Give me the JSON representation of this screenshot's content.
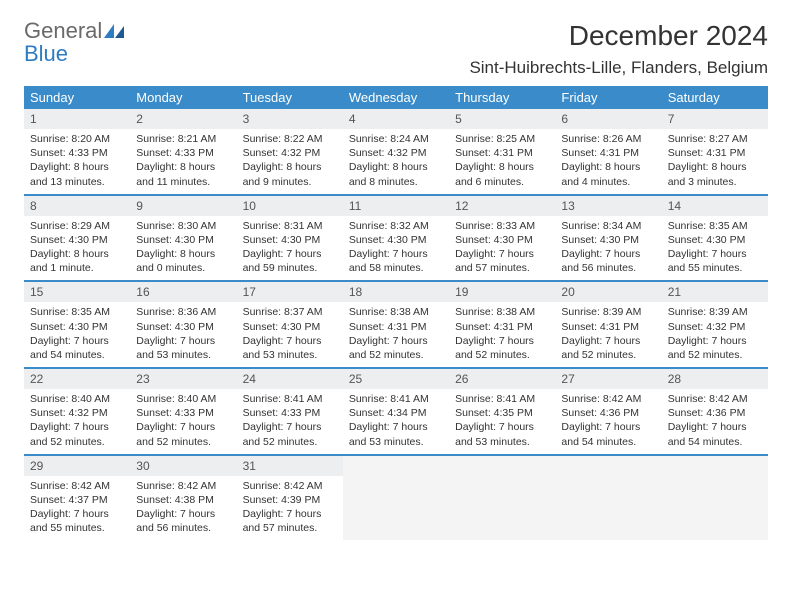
{
  "logo": {
    "general": "General",
    "blue": "Blue"
  },
  "title": "December 2024",
  "location": "Sint-Huibrechts-Lille, Flanders, Belgium",
  "colors": {
    "header_bg": "#3a8bc9",
    "header_text": "#ffffff",
    "daynum_bg": "#eceeef",
    "daynum_text": "#555555",
    "body_text": "#333333",
    "rule": "#3a8bc9",
    "logo_gray": "#6a6a6a",
    "logo_blue": "#2e7cc2",
    "empty_bg": "#f4f4f4"
  },
  "weekdays": [
    "Sunday",
    "Monday",
    "Tuesday",
    "Wednesday",
    "Thursday",
    "Friday",
    "Saturday"
  ],
  "weeks": [
    [
      {
        "n": "1",
        "sr": "Sunrise: 8:20 AM",
        "ss": "Sunset: 4:33 PM",
        "dl1": "Daylight: 8 hours",
        "dl2": "and 13 minutes."
      },
      {
        "n": "2",
        "sr": "Sunrise: 8:21 AM",
        "ss": "Sunset: 4:33 PM",
        "dl1": "Daylight: 8 hours",
        "dl2": "and 11 minutes."
      },
      {
        "n": "3",
        "sr": "Sunrise: 8:22 AM",
        "ss": "Sunset: 4:32 PM",
        "dl1": "Daylight: 8 hours",
        "dl2": "and 9 minutes."
      },
      {
        "n": "4",
        "sr": "Sunrise: 8:24 AM",
        "ss": "Sunset: 4:32 PM",
        "dl1": "Daylight: 8 hours",
        "dl2": "and 8 minutes."
      },
      {
        "n": "5",
        "sr": "Sunrise: 8:25 AM",
        "ss": "Sunset: 4:31 PM",
        "dl1": "Daylight: 8 hours",
        "dl2": "and 6 minutes."
      },
      {
        "n": "6",
        "sr": "Sunrise: 8:26 AM",
        "ss": "Sunset: 4:31 PM",
        "dl1": "Daylight: 8 hours",
        "dl2": "and 4 minutes."
      },
      {
        "n": "7",
        "sr": "Sunrise: 8:27 AM",
        "ss": "Sunset: 4:31 PM",
        "dl1": "Daylight: 8 hours",
        "dl2": "and 3 minutes."
      }
    ],
    [
      {
        "n": "8",
        "sr": "Sunrise: 8:29 AM",
        "ss": "Sunset: 4:30 PM",
        "dl1": "Daylight: 8 hours",
        "dl2": "and 1 minute."
      },
      {
        "n": "9",
        "sr": "Sunrise: 8:30 AM",
        "ss": "Sunset: 4:30 PM",
        "dl1": "Daylight: 8 hours",
        "dl2": "and 0 minutes."
      },
      {
        "n": "10",
        "sr": "Sunrise: 8:31 AM",
        "ss": "Sunset: 4:30 PM",
        "dl1": "Daylight: 7 hours",
        "dl2": "and 59 minutes."
      },
      {
        "n": "11",
        "sr": "Sunrise: 8:32 AM",
        "ss": "Sunset: 4:30 PM",
        "dl1": "Daylight: 7 hours",
        "dl2": "and 58 minutes."
      },
      {
        "n": "12",
        "sr": "Sunrise: 8:33 AM",
        "ss": "Sunset: 4:30 PM",
        "dl1": "Daylight: 7 hours",
        "dl2": "and 57 minutes."
      },
      {
        "n": "13",
        "sr": "Sunrise: 8:34 AM",
        "ss": "Sunset: 4:30 PM",
        "dl1": "Daylight: 7 hours",
        "dl2": "and 56 minutes."
      },
      {
        "n": "14",
        "sr": "Sunrise: 8:35 AM",
        "ss": "Sunset: 4:30 PM",
        "dl1": "Daylight: 7 hours",
        "dl2": "and 55 minutes."
      }
    ],
    [
      {
        "n": "15",
        "sr": "Sunrise: 8:35 AM",
        "ss": "Sunset: 4:30 PM",
        "dl1": "Daylight: 7 hours",
        "dl2": "and 54 minutes."
      },
      {
        "n": "16",
        "sr": "Sunrise: 8:36 AM",
        "ss": "Sunset: 4:30 PM",
        "dl1": "Daylight: 7 hours",
        "dl2": "and 53 minutes."
      },
      {
        "n": "17",
        "sr": "Sunrise: 8:37 AM",
        "ss": "Sunset: 4:30 PM",
        "dl1": "Daylight: 7 hours",
        "dl2": "and 53 minutes."
      },
      {
        "n": "18",
        "sr": "Sunrise: 8:38 AM",
        "ss": "Sunset: 4:31 PM",
        "dl1": "Daylight: 7 hours",
        "dl2": "and 52 minutes."
      },
      {
        "n": "19",
        "sr": "Sunrise: 8:38 AM",
        "ss": "Sunset: 4:31 PM",
        "dl1": "Daylight: 7 hours",
        "dl2": "and 52 minutes."
      },
      {
        "n": "20",
        "sr": "Sunrise: 8:39 AM",
        "ss": "Sunset: 4:31 PM",
        "dl1": "Daylight: 7 hours",
        "dl2": "and 52 minutes."
      },
      {
        "n": "21",
        "sr": "Sunrise: 8:39 AM",
        "ss": "Sunset: 4:32 PM",
        "dl1": "Daylight: 7 hours",
        "dl2": "and 52 minutes."
      }
    ],
    [
      {
        "n": "22",
        "sr": "Sunrise: 8:40 AM",
        "ss": "Sunset: 4:32 PM",
        "dl1": "Daylight: 7 hours",
        "dl2": "and 52 minutes."
      },
      {
        "n": "23",
        "sr": "Sunrise: 8:40 AM",
        "ss": "Sunset: 4:33 PM",
        "dl1": "Daylight: 7 hours",
        "dl2": "and 52 minutes."
      },
      {
        "n": "24",
        "sr": "Sunrise: 8:41 AM",
        "ss": "Sunset: 4:33 PM",
        "dl1": "Daylight: 7 hours",
        "dl2": "and 52 minutes."
      },
      {
        "n": "25",
        "sr": "Sunrise: 8:41 AM",
        "ss": "Sunset: 4:34 PM",
        "dl1": "Daylight: 7 hours",
        "dl2": "and 53 minutes."
      },
      {
        "n": "26",
        "sr": "Sunrise: 8:41 AM",
        "ss": "Sunset: 4:35 PM",
        "dl1": "Daylight: 7 hours",
        "dl2": "and 53 minutes."
      },
      {
        "n": "27",
        "sr": "Sunrise: 8:42 AM",
        "ss": "Sunset: 4:36 PM",
        "dl1": "Daylight: 7 hours",
        "dl2": "and 54 minutes."
      },
      {
        "n": "28",
        "sr": "Sunrise: 8:42 AM",
        "ss": "Sunset: 4:36 PM",
        "dl1": "Daylight: 7 hours",
        "dl2": "and 54 minutes."
      }
    ],
    [
      {
        "n": "29",
        "sr": "Sunrise: 8:42 AM",
        "ss": "Sunset: 4:37 PM",
        "dl1": "Daylight: 7 hours",
        "dl2": "and 55 minutes."
      },
      {
        "n": "30",
        "sr": "Sunrise: 8:42 AM",
        "ss": "Sunset: 4:38 PM",
        "dl1": "Daylight: 7 hours",
        "dl2": "and 56 minutes."
      },
      {
        "n": "31",
        "sr": "Sunrise: 8:42 AM",
        "ss": "Sunset: 4:39 PM",
        "dl1": "Daylight: 7 hours",
        "dl2": "and 57 minutes."
      },
      null,
      null,
      null,
      null
    ]
  ]
}
